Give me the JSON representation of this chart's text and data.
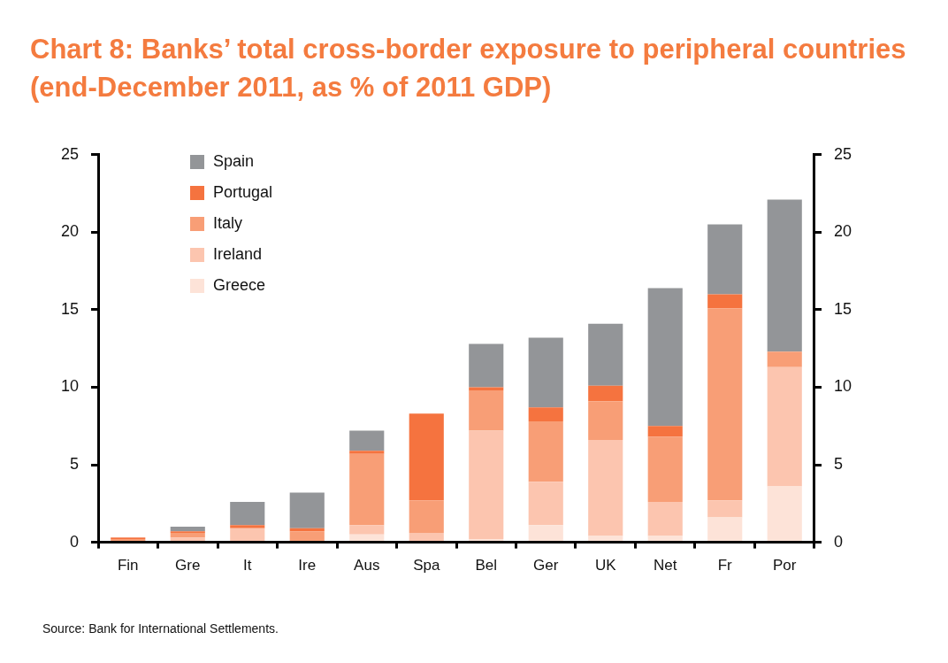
{
  "chart_data": {
    "type": "bar",
    "title": "Chart 8: Banks’ total cross-border exposure to peripheral countries (end-December 2011, as % of 2011 GDP)",
    "categories": [
      "Fin",
      "Gre",
      "It",
      "Ire",
      "Aus",
      "Spa",
      "Bel",
      "Ger",
      "UK",
      "Net",
      "Fr",
      "Por"
    ],
    "stacked": true,
    "series": [
      {
        "name": "Greece",
        "color": "#fde3d8",
        "values": [
          0,
          0,
          0,
          0,
          0.5,
          0,
          0.2,
          1.1,
          0.4,
          0.4,
          1.6,
          3.6
        ]
      },
      {
        "name": "Ireland",
        "color": "#fcc5af",
        "values": [
          0,
          0.3,
          0.9,
          0,
          0.6,
          0.6,
          7.0,
          2.8,
          6.2,
          2.2,
          1.1,
          7.7
        ]
      },
      {
        "name": "Italy",
        "color": "#f89e76",
        "values": [
          0.2,
          0.3,
          0,
          0.7,
          4.6,
          2.1,
          2.6,
          3.9,
          2.5,
          4.2,
          12.4,
          1.0
        ]
      },
      {
        "name": "Portugal",
        "color": "#f5733f",
        "values": [
          0.1,
          0.1,
          0.2,
          0.2,
          0.2,
          5.6,
          0.2,
          0.9,
          1.0,
          0.7,
          0.9,
          0
        ]
      },
      {
        "name": "Spain",
        "color": "#939598",
        "values": [
          0,
          0.3,
          1.5,
          2.3,
          1.3,
          0,
          2.8,
          4.5,
          4.0,
          8.9,
          4.5,
          9.8
        ]
      }
    ],
    "ylim": [
      0,
      25
    ],
    "yticks": [
      0,
      5,
      10,
      15,
      20,
      25
    ],
    "y2lim": [
      0,
      25
    ],
    "y2ticks": [
      0,
      5,
      10,
      15,
      20,
      25
    ],
    "grid": false,
    "legend": "top left",
    "annotations": [
      "Source: Bank for International Settlements."
    ]
  }
}
